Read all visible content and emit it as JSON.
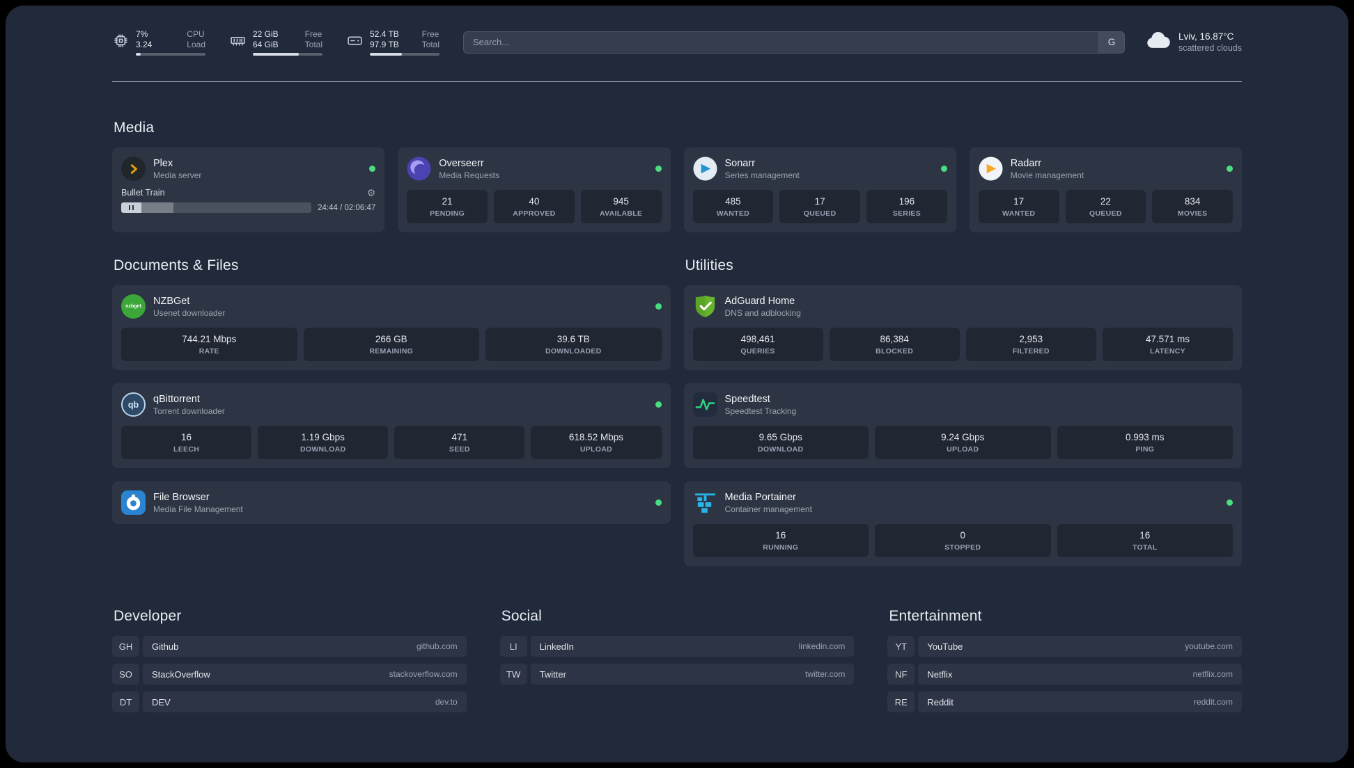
{
  "icons": {
    "gear": "⚙"
  },
  "colors": {
    "status_online": "#4ade80"
  },
  "topbar": {
    "cpu": {
      "value1": "7%",
      "label1": "CPU",
      "value2": "3.24",
      "label2": "Load",
      "progress": 7
    },
    "memory": {
      "value1": "22 GiB",
      "label1": "Free",
      "value2": "64 GiB",
      "label2": "Total",
      "progress": 66
    },
    "disk": {
      "value1": "52.4 TB",
      "label1": "Free",
      "value2": "97.9 TB",
      "label2": "Total",
      "progress": 46
    },
    "search": {
      "placeholder": "Search...",
      "provider": "G"
    },
    "weather": {
      "location": "Lviv, 16.87°C",
      "condition": "scattered clouds"
    }
  },
  "media": {
    "heading": "Media",
    "cards": {
      "plex": {
        "name": "Plex",
        "desc": "Media server",
        "now_playing": {
          "title": "Bullet Train",
          "time": "24:44 / 02:06:47",
          "progress": 19
        }
      },
      "overseerr": {
        "name": "Overseerr",
        "desc": "Media Requests",
        "stats": [
          {
            "value": "21",
            "label": "PENDING"
          },
          {
            "value": "40",
            "label": "APPROVED"
          },
          {
            "value": "945",
            "label": "AVAILABLE"
          }
        ]
      },
      "sonarr": {
        "name": "Sonarr",
        "desc": "Series management",
        "stats": [
          {
            "value": "485",
            "label": "WANTED"
          },
          {
            "value": "17",
            "label": "QUEUED"
          },
          {
            "value": "196",
            "label": "SERIES"
          }
        ]
      },
      "radarr": {
        "name": "Radarr",
        "desc": "Movie management",
        "stats": [
          {
            "value": "17",
            "label": "WANTED"
          },
          {
            "value": "22",
            "label": "QUEUED"
          },
          {
            "value": "834",
            "label": "MOVIES"
          }
        ]
      }
    }
  },
  "documents": {
    "heading": "Documents & Files",
    "cards": {
      "nzbget": {
        "name": "NZBGet",
        "desc": "Usenet downloader",
        "icon_label": "nzbget",
        "stats": [
          {
            "value": "744.21 Mbps",
            "label": "RATE"
          },
          {
            "value": "266 GB",
            "label": "REMAINING"
          },
          {
            "value": "39.6 TB",
            "label": "DOWNLOADED"
          }
        ]
      },
      "qbittorrent": {
        "name": "qBittorrent",
        "desc": "Torrent downloader",
        "icon_label": "qb",
        "stats": [
          {
            "value": "16",
            "label": "LEECH"
          },
          {
            "value": "1.19 Gbps",
            "label": "DOWNLOAD"
          },
          {
            "value": "471",
            "label": "SEED"
          },
          {
            "value": "618.52 Mbps",
            "label": "UPLOAD"
          }
        ]
      },
      "filebrowser": {
        "name": "File Browser",
        "desc": "Media File Management"
      }
    }
  },
  "utilities": {
    "heading": "Utilities",
    "cards": {
      "adguard": {
        "name": "AdGuard Home",
        "desc": "DNS and adblocking",
        "stats": [
          {
            "value": "498,461",
            "label": "QUERIES"
          },
          {
            "value": "86,384",
            "label": "BLOCKED"
          },
          {
            "value": "2,953",
            "label": "FILTERED"
          },
          {
            "value": "47.571 ms",
            "label": "LATENCY"
          }
        ]
      },
      "speedtest": {
        "name": "Speedtest",
        "desc": "Speedtest Tracking",
        "stats": [
          {
            "value": "9.65 Gbps",
            "label": "DOWNLOAD"
          },
          {
            "value": "9.24 Gbps",
            "label": "UPLOAD"
          },
          {
            "value": "0.993 ms",
            "label": "PING"
          }
        ]
      },
      "portainer": {
        "name": "Media Portainer",
        "desc": "Container management",
        "stats": [
          {
            "value": "16",
            "label": "RUNNING"
          },
          {
            "value": "0",
            "label": "STOPPED"
          },
          {
            "value": "16",
            "label": "TOTAL"
          }
        ]
      }
    }
  },
  "bookmarks": {
    "developer": {
      "heading": "Developer",
      "items": [
        {
          "abbr": "GH",
          "name": "Github",
          "url": "github.com"
        },
        {
          "abbr": "SO",
          "name": "StackOverflow",
          "url": "stackoverflow.com"
        },
        {
          "abbr": "DT",
          "name": "DEV",
          "url": "dev.to"
        }
      ]
    },
    "social": {
      "heading": "Social",
      "items": [
        {
          "abbr": "LI",
          "name": "LinkedIn",
          "url": "linkedin.com"
        },
        {
          "abbr": "TW",
          "name": "Twitter",
          "url": "twitter.com"
        }
      ]
    },
    "entertainment": {
      "heading": "Entertainment",
      "items": [
        {
          "abbr": "YT",
          "name": "YouTube",
          "url": "youtube.com"
        },
        {
          "abbr": "NF",
          "name": "Netflix",
          "url": "netflix.com"
        },
        {
          "abbr": "RE",
          "name": "Reddit",
          "url": "reddit.com"
        }
      ]
    }
  }
}
